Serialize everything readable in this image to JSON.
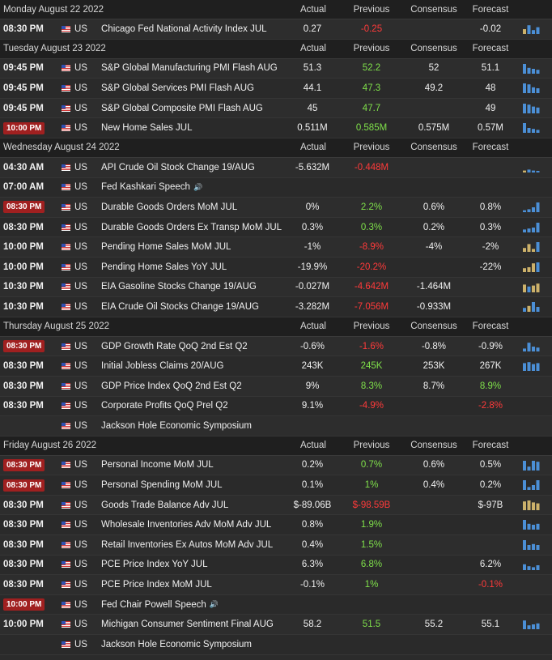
{
  "headers": {
    "actual": "Actual",
    "previous": "Previous",
    "consensus": "Consensus",
    "forecast": "Forecast"
  },
  "days": [
    {
      "title": "Monday August 22 2022",
      "show_cols": true,
      "rows": [
        {
          "time": "08:30 PM",
          "badge": false,
          "country": "US",
          "event": "Chicago Fed National Activity Index JUL",
          "actual": "0.27",
          "previous": "-0.25",
          "previous_color": "neg",
          "consensus": "",
          "forecast": "-0.02",
          "forecast_color": "neutral",
          "spark": [
            0.5,
            0.9,
            0.4,
            0.7
          ],
          "spark_colors": [
            "#ccb16a",
            "#4b8fd6",
            "#4b8fd6",
            "#4b8fd6"
          ]
        }
      ]
    },
    {
      "title": "Tuesday August 23 2022",
      "show_cols": true,
      "rows": [
        {
          "time": "09:45 PM",
          "badge": false,
          "country": "US",
          "event": "S&P Global Manufacturing PMI Flash AUG",
          "actual": "51.3",
          "previous": "52.2",
          "previous_color": "pos",
          "consensus": "52",
          "forecast": "51.1",
          "forecast_color": "neutral",
          "spark": [
            1,
            0.6,
            0.5,
            0.4
          ],
          "spark_colors": [
            "#4b8fd6",
            "#4b8fd6",
            "#4b8fd6",
            "#4b8fd6"
          ]
        },
        {
          "time": "09:45 PM",
          "badge": false,
          "country": "US",
          "event": "S&P Global Services PMI Flash AUG",
          "actual": "44.1",
          "previous": "47.3",
          "previous_color": "pos",
          "consensus": "49.2",
          "forecast": "48",
          "forecast_color": "neutral",
          "spark": [
            1,
            0.9,
            0.6,
            0.5
          ],
          "spark_colors": [
            "#4b8fd6",
            "#4b8fd6",
            "#4b8fd6",
            "#4b8fd6"
          ]
        },
        {
          "time": "09:45 PM",
          "badge": false,
          "country": "US",
          "event": "S&P Global Composite PMI Flash AUG",
          "actual": "45",
          "previous": "47.7",
          "previous_color": "pos",
          "consensus": "",
          "forecast": "49",
          "forecast_color": "neutral",
          "spark": [
            1,
            0.9,
            0.7,
            0.6
          ],
          "spark_colors": [
            "#4b8fd6",
            "#4b8fd6",
            "#4b8fd6",
            "#4b8fd6"
          ]
        },
        {
          "time": "10:00 PM",
          "badge": true,
          "country": "US",
          "event": "New Home Sales JUL",
          "actual": "0.511M",
          "previous": "0.585M",
          "previous_color": "pos",
          "consensus": "0.575M",
          "forecast": "0.57M",
          "forecast_color": "neutral",
          "spark": [
            1,
            0.5,
            0.4,
            0.3
          ],
          "spark_colors": [
            "#4b8fd6",
            "#4b8fd6",
            "#4b8fd6",
            "#4b8fd6"
          ]
        }
      ]
    },
    {
      "title": "Wednesday August 24 2022",
      "show_cols": true,
      "rows": [
        {
          "time": "04:30 AM",
          "badge": false,
          "country": "US",
          "event": "API Crude Oil Stock Change 19/AUG",
          "actual": "-5.632M",
          "previous": "-0.448M",
          "previous_color": "neg",
          "consensus": "",
          "forecast": "",
          "forecast_color": "neutral",
          "spark": [
            0.2,
            0.3,
            0.2,
            0.15
          ],
          "spark_colors": [
            "#ccb16a",
            "#4b8fd6",
            "#4b8fd6",
            "#4b8fd6"
          ]
        },
        {
          "time": "07:00 AM",
          "badge": false,
          "country": "US",
          "event": "Fed Kashkari Speech",
          "speech": true,
          "actual": "",
          "previous": "",
          "previous_color": "neutral",
          "consensus": "",
          "forecast": "",
          "forecast_color": "neutral",
          "spark": [],
          "spark_colors": []
        },
        {
          "time": "08:30 PM",
          "badge": true,
          "country": "US",
          "event": "Durable Goods Orders MoM JUL",
          "actual": "0%",
          "previous": "2.2%",
          "previous_color": "pos",
          "consensus": "0.6%",
          "forecast": "0.8%",
          "forecast_color": "neutral",
          "spark": [
            0.2,
            0.3,
            0.5,
            1
          ],
          "spark_colors": [
            "#4b8fd6",
            "#4b8fd6",
            "#4b8fd6",
            "#4b8fd6"
          ]
        },
        {
          "time": "08:30 PM",
          "badge": false,
          "country": "US",
          "event": "Durable Goods Orders Ex Transp MoM JUL",
          "actual": "0.3%",
          "previous": "0.3%",
          "previous_color": "pos",
          "consensus": "0.2%",
          "forecast": "0.3%",
          "forecast_color": "neutral",
          "spark": [
            0.3,
            0.4,
            0.5,
            1
          ],
          "spark_colors": [
            "#4b8fd6",
            "#4b8fd6",
            "#4b8fd6",
            "#4b8fd6"
          ]
        },
        {
          "time": "10:00 PM",
          "badge": false,
          "country": "US",
          "event": "Pending Home Sales MoM JUL",
          "actual": "-1%",
          "previous": "-8.9%",
          "previous_color": "neg",
          "consensus": "-4%",
          "forecast": "-2%",
          "forecast_color": "neutral",
          "spark": [
            0.4,
            0.8,
            0.3,
            1
          ],
          "spark_colors": [
            "#ccb16a",
            "#ccb16a",
            "#ccb16a",
            "#4b8fd6"
          ]
        },
        {
          "time": "10:00 PM",
          "badge": false,
          "country": "US",
          "event": "Pending Home Sales YoY JUL",
          "actual": "-19.9%",
          "previous": "-20.2%",
          "previous_color": "neg",
          "consensus": "",
          "forecast": "-22%",
          "forecast_color": "neutral",
          "spark": [
            0.4,
            0.5,
            0.9,
            1
          ],
          "spark_colors": [
            "#ccb16a",
            "#ccb16a",
            "#ccb16a",
            "#4b8fd6"
          ]
        },
        {
          "time": "10:30 PM",
          "badge": false,
          "country": "US",
          "event": "EIA Gasoline Stocks Change 19/AUG",
          "actual": "-0.027M",
          "previous": "-4.642M",
          "previous_color": "neg",
          "consensus": "-1.464M",
          "forecast": "",
          "forecast_color": "neutral",
          "spark": [
            0.8,
            0.6,
            0.7,
            0.9
          ],
          "spark_colors": [
            "#ccb16a",
            "#4b8fd6",
            "#ccb16a",
            "#ccb16a"
          ]
        },
        {
          "time": "10:30 PM",
          "badge": false,
          "country": "US",
          "event": "EIA Crude Oil Stocks Change 19/AUG",
          "actual": "-3.282M",
          "previous": "-7.056M",
          "previous_color": "neg",
          "consensus": "-0.933M",
          "forecast": "",
          "forecast_color": "neutral",
          "spark": [
            0.4,
            0.6,
            1,
            0.5
          ],
          "spark_colors": [
            "#4b8fd6",
            "#ccb16a",
            "#4b8fd6",
            "#4b8fd6"
          ]
        }
      ]
    },
    {
      "title": "Thursday August 25 2022",
      "show_cols": true,
      "rows": [
        {
          "time": "08:30 PM",
          "badge": true,
          "country": "US",
          "event": "GDP Growth Rate QoQ 2nd Est Q2",
          "actual": "-0.6%",
          "previous": "-1.6%",
          "previous_color": "neg",
          "consensus": "-0.8%",
          "forecast": "-0.9%",
          "forecast_color": "neutral",
          "spark": [
            0.3,
            0.9,
            0.5,
            0.4
          ],
          "spark_colors": [
            "#4b8fd6",
            "#4b8fd6",
            "#4b8fd6",
            "#4b8fd6"
          ]
        },
        {
          "time": "08:30 PM",
          "badge": false,
          "country": "US",
          "event": "Initial Jobless Claims 20/AUG",
          "actual": "243K",
          "previous": "245K",
          "previous_color": "pos",
          "consensus": "253K",
          "forecast": "267K",
          "forecast_color": "neutral",
          "spark": [
            0.8,
            0.9,
            0.7,
            0.8
          ],
          "spark_colors": [
            "#4b8fd6",
            "#4b8fd6",
            "#4b8fd6",
            "#4b8fd6"
          ]
        },
        {
          "time": "08:30 PM",
          "badge": false,
          "country": "US",
          "event": "GDP Price Index QoQ 2nd Est Q2",
          "actual": "9%",
          "previous": "8.3%",
          "previous_color": "pos",
          "consensus": "8.7%",
          "forecast": "8.9%",
          "forecast_color": "pos",
          "spark": [],
          "spark_colors": []
        },
        {
          "time": "08:30 PM",
          "badge": false,
          "country": "US",
          "event": "Corporate Profits QoQ Prel Q2",
          "actual": "9.1%",
          "previous": "-4.9%",
          "previous_color": "neg",
          "consensus": "",
          "forecast": "-2.8%",
          "forecast_color": "neg",
          "spark": [],
          "spark_colors": []
        },
        {
          "time": "",
          "badge": false,
          "country": "US",
          "event": "Jackson Hole Economic Symposium",
          "actual": "",
          "previous": "",
          "previous_color": "neutral",
          "consensus": "",
          "forecast": "",
          "forecast_color": "neutral",
          "spark": [],
          "spark_colors": []
        }
      ]
    },
    {
      "title": "Friday August 26 2022",
      "show_cols": true,
      "rows": [
        {
          "time": "08:30 PM",
          "badge": true,
          "country": "US",
          "event": "Personal Income MoM JUL",
          "actual": "0.2%",
          "previous": "0.7%",
          "previous_color": "pos",
          "consensus": "0.6%",
          "forecast": "0.5%",
          "forecast_color": "neutral",
          "spark": [
            1,
            0.4,
            1,
            0.9
          ],
          "spark_colors": [
            "#4b8fd6",
            "#4b8fd6",
            "#4b8fd6",
            "#4b8fd6"
          ]
        },
        {
          "time": "08:30 PM",
          "badge": true,
          "country": "US",
          "event": "Personal Spending MoM JUL",
          "actual": "0.1%",
          "previous": "1%",
          "previous_color": "pos",
          "consensus": "0.4%",
          "forecast": "0.2%",
          "forecast_color": "neutral",
          "spark": [
            1,
            0.3,
            0.5,
            1
          ],
          "spark_colors": [
            "#4b8fd6",
            "#4b8fd6",
            "#4b8fd6",
            "#4b8fd6"
          ]
        },
        {
          "time": "08:30 PM",
          "badge": false,
          "country": "US",
          "event": "Goods Trade Balance Adv JUL",
          "actual": "$-89.06B",
          "previous": "$-98.59B",
          "previous_color": "neg",
          "consensus": "",
          "forecast": "$-97B",
          "forecast_color": "neutral",
          "spark": [
            0.9,
            1,
            0.8,
            0.7
          ],
          "spark_colors": [
            "#ccb16a",
            "#ccb16a",
            "#ccb16a",
            "#ccb16a"
          ]
        },
        {
          "time": "08:30 PM",
          "badge": false,
          "country": "US",
          "event": "Wholesale Inventories Adv MoM Adv JUL",
          "actual": "0.8%",
          "previous": "1.9%",
          "previous_color": "pos",
          "consensus": "",
          "forecast": "",
          "forecast_color": "neutral",
          "spark": [
            1,
            0.6,
            0.5,
            0.6
          ],
          "spark_colors": [
            "#4b8fd6",
            "#4b8fd6",
            "#4b8fd6",
            "#4b8fd6"
          ]
        },
        {
          "time": "08:30 PM",
          "badge": false,
          "country": "US",
          "event": "Retail Inventories Ex Autos MoM Adv JUL",
          "actual": "0.4%",
          "previous": "1.5%",
          "previous_color": "pos",
          "consensus": "",
          "forecast": "",
          "forecast_color": "neutral",
          "spark": [
            1,
            0.5,
            0.6,
            0.5
          ],
          "spark_colors": [
            "#4b8fd6",
            "#4b8fd6",
            "#4b8fd6",
            "#4b8fd6"
          ]
        },
        {
          "time": "08:30 PM",
          "badge": false,
          "country": "US",
          "event": "PCE Price Index YoY JUL",
          "actual": "6.3%",
          "previous": "6.8%",
          "previous_color": "pos",
          "consensus": "",
          "forecast": "6.2%",
          "forecast_color": "neutral",
          "spark": [
            0.6,
            0.4,
            0.3,
            0.5
          ],
          "spark_colors": [
            "#4b8fd6",
            "#4b8fd6",
            "#4b8fd6",
            "#4b8fd6"
          ]
        },
        {
          "time": "08:30 PM",
          "badge": false,
          "country": "US",
          "event": "PCE Price Index MoM JUL",
          "actual": "-0.1%",
          "previous": "1%",
          "previous_color": "pos",
          "consensus": "",
          "forecast": "-0.1%",
          "forecast_color": "neg",
          "spark": [],
          "spark_colors": []
        },
        {
          "time": "10:00 PM",
          "badge": true,
          "country": "US",
          "event": "Fed Chair Powell Speech",
          "speech": true,
          "actual": "",
          "previous": "",
          "previous_color": "neutral",
          "consensus": "",
          "forecast": "",
          "forecast_color": "neutral",
          "spark": [],
          "spark_colors": []
        },
        {
          "time": "10:00 PM",
          "badge": false,
          "country": "US",
          "event": "Michigan Consumer Sentiment Final AUG",
          "actual": "58.2",
          "previous": "51.5",
          "previous_color": "pos",
          "consensus": "55.2",
          "forecast": "55.1",
          "forecast_color": "neutral",
          "spark": [
            0.9,
            0.4,
            0.5,
            0.6
          ],
          "spark_colors": [
            "#4b8fd6",
            "#4b8fd6",
            "#4b8fd6",
            "#4b8fd6"
          ]
        },
        {
          "time": "",
          "badge": false,
          "country": "US",
          "event": "Jackson Hole Economic Symposium",
          "actual": "",
          "previous": "",
          "previous_color": "neutral",
          "consensus": "",
          "forecast": "",
          "forecast_color": "neutral",
          "spark": [],
          "spark_colors": []
        }
      ]
    }
  ]
}
